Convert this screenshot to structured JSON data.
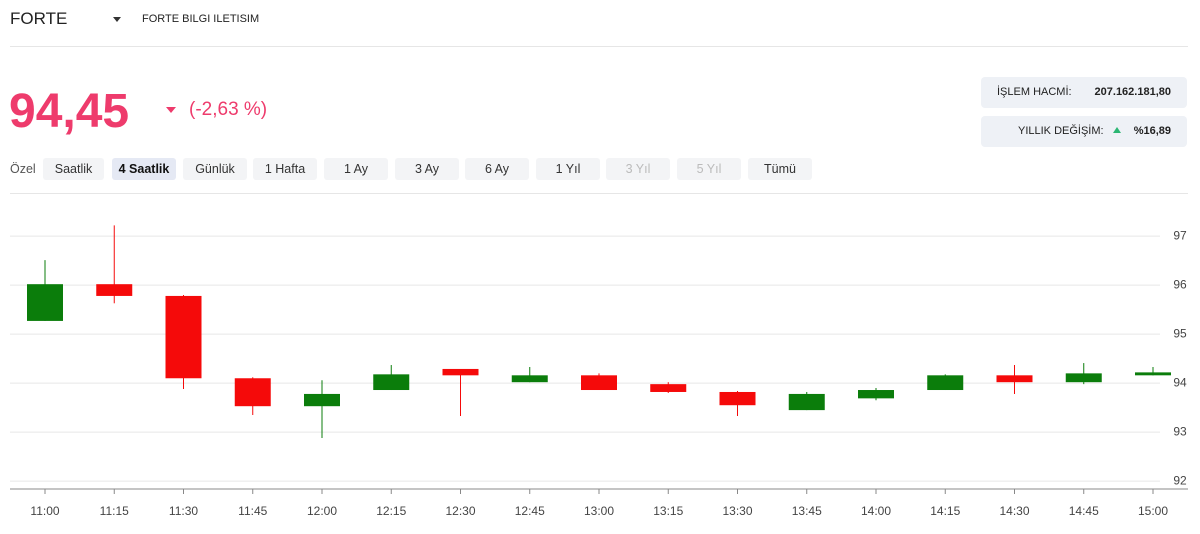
{
  "header": {
    "symbol": "FORTE",
    "name": "FORTE BILGI ILETISIM"
  },
  "price": {
    "value": "94,45",
    "change": "(-2,63 %)"
  },
  "stats": [
    {
      "label": "İŞLEM HACMİ:",
      "value": "207.162.181,80"
    },
    {
      "label": "YILLIK DEĞİŞİM:",
      "value": "%16,89"
    }
  ],
  "periods": {
    "label": "Özel",
    "items": [
      "Saatlik",
      "4 Saatlik",
      "Günlük",
      "1 Hafta",
      "1 Ay",
      "3 Ay",
      "6 Ay",
      "1 Yıl",
      "3 Yıl",
      "5 Yıl",
      "Tümü"
    ]
  },
  "chart_data": {
    "type": "candlestick",
    "categories": [
      "11:00",
      "11:15",
      "11:30",
      "11:45",
      "12:00",
      "12:15",
      "12:30",
      "12:45",
      "13:00",
      "13:15",
      "13:30",
      "13:45",
      "14:00",
      "14:15",
      "14:30",
      "14:45",
      "15:00"
    ],
    "open": [
      95.27,
      96.02,
      95.78,
      94.1,
      93.53,
      93.86,
      94.29,
      94.02,
      94.16,
      93.98,
      93.82,
      93.45,
      93.69,
      93.86,
      94.16,
      94.02,
      94.16
    ],
    "close": [
      96.02,
      95.78,
      94.1,
      93.53,
      93.78,
      94.18,
      94.16,
      94.16,
      93.86,
      93.82,
      93.55,
      93.78,
      93.86,
      94.16,
      94.02,
      94.2,
      94.22
    ],
    "high": [
      96.51,
      97.22,
      95.8,
      94.12,
      94.06,
      94.37,
      94.29,
      94.33,
      94.2,
      94.02,
      93.84,
      93.82,
      93.9,
      94.18,
      94.37,
      94.41,
      94.33
    ],
    "low": [
      95.27,
      95.63,
      93.88,
      93.35,
      92.88,
      93.86,
      93.33,
      94.02,
      93.86,
      93.8,
      93.33,
      93.45,
      93.65,
      93.86,
      93.78,
      93.98,
      94.16
    ],
    "up_color": "#0b7d0b",
    "down_color": "#f50a0a",
    "ylim": [
      91.84,
      97.84
    ],
    "yticks": [
      92,
      93,
      94,
      95,
      96,
      97
    ],
    "grid": true
  }
}
